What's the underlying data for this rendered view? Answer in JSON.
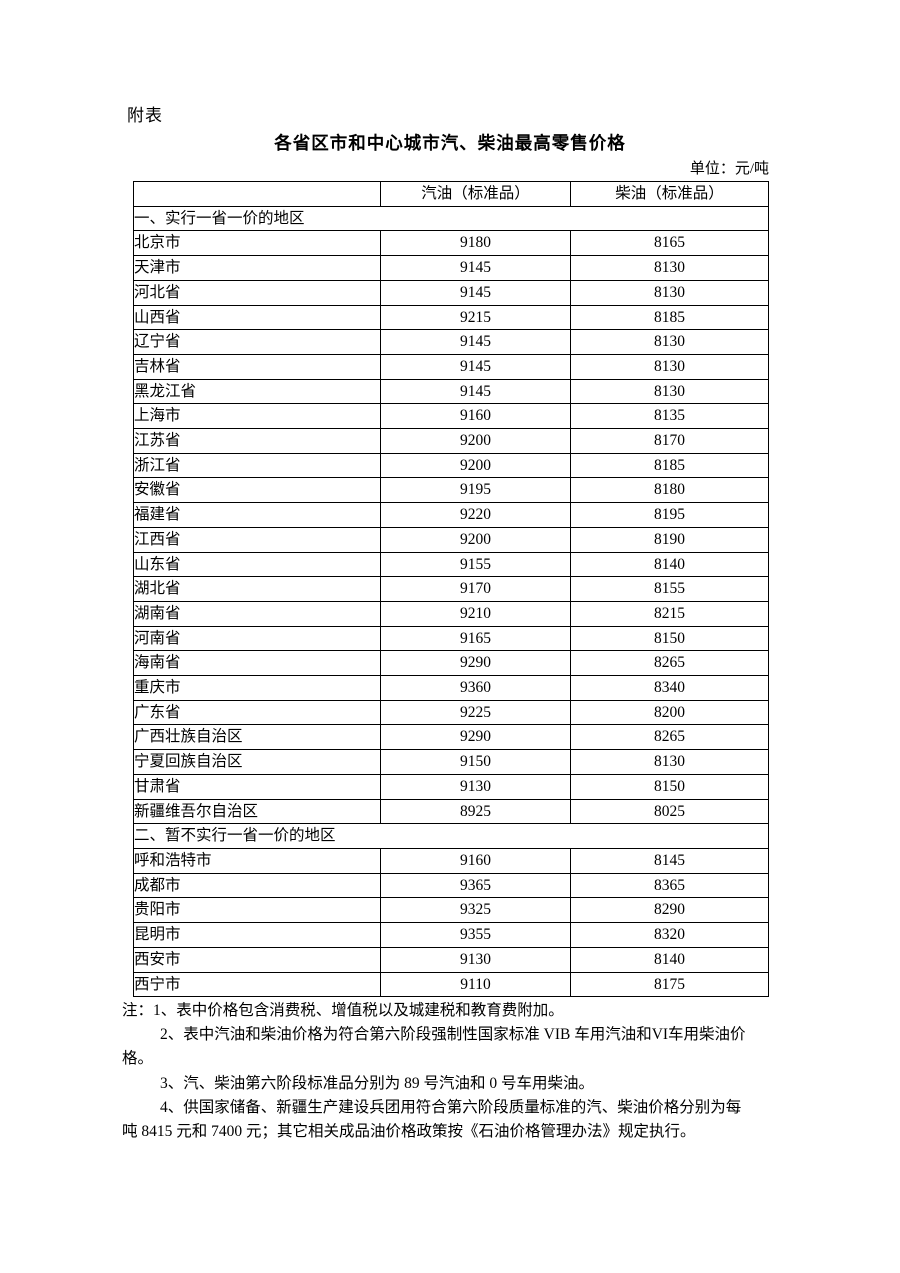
{
  "page": {
    "appendix_label": "附表",
    "title": "各省区市和中心城市汽、柴油最高零售价格",
    "unit_label": "单位：元/吨"
  },
  "table": {
    "columns": [
      "",
      "汽油（标准品）",
      "柴油（标准品）"
    ],
    "sections": [
      {
        "header": "一、实行一省一价的地区",
        "rows": [
          {
            "region": "北京市",
            "gasoline": "9180",
            "diesel": "8165"
          },
          {
            "region": "天津市",
            "gasoline": "9145",
            "diesel": "8130"
          },
          {
            "region": "河北省",
            "gasoline": "9145",
            "diesel": "8130"
          },
          {
            "region": "山西省",
            "gasoline": "9215",
            "diesel": "8185"
          },
          {
            "region": "辽宁省",
            "gasoline": "9145",
            "diesel": "8130"
          },
          {
            "region": "吉林省",
            "gasoline": "9145",
            "diesel": "8130"
          },
          {
            "region": "黑龙江省",
            "gasoline": "9145",
            "diesel": "8130"
          },
          {
            "region": "上海市",
            "gasoline": "9160",
            "diesel": "8135"
          },
          {
            "region": "江苏省",
            "gasoline": "9200",
            "diesel": "8170"
          },
          {
            "region": "浙江省",
            "gasoline": "9200",
            "diesel": "8185"
          },
          {
            "region": "安徽省",
            "gasoline": "9195",
            "diesel": "8180"
          },
          {
            "region": "福建省",
            "gasoline": "9220",
            "diesel": "8195"
          },
          {
            "region": "江西省",
            "gasoline": "9200",
            "diesel": "8190"
          },
          {
            "region": "山东省",
            "gasoline": "9155",
            "diesel": "8140"
          },
          {
            "region": "湖北省",
            "gasoline": "9170",
            "diesel": "8155"
          },
          {
            "region": "湖南省",
            "gasoline": "9210",
            "diesel": "8215"
          },
          {
            "region": "河南省",
            "gasoline": "9165",
            "diesel": "8150"
          },
          {
            "region": "海南省",
            "gasoline": "9290",
            "diesel": "8265"
          },
          {
            "region": "重庆市",
            "gasoline": "9360",
            "diesel": "8340"
          },
          {
            "region": "广东省",
            "gasoline": "9225",
            "diesel": "8200"
          },
          {
            "region": "广西壮族自治区",
            "gasoline": "9290",
            "diesel": "8265"
          },
          {
            "region": "宁夏回族自治区",
            "gasoline": "9150",
            "diesel": "8130"
          },
          {
            "region": "甘肃省",
            "gasoline": "9130",
            "diesel": "8150"
          },
          {
            "region": "新疆维吾尔自治区",
            "gasoline": "8925",
            "diesel": "8025"
          }
        ]
      },
      {
        "header": "二、暂不实行一省一价的地区",
        "rows": [
          {
            "region": "呼和浩特市",
            "gasoline": "9160",
            "diesel": "8145"
          },
          {
            "region": "成都市",
            "gasoline": "9365",
            "diesel": "8365"
          },
          {
            "region": "贵阳市",
            "gasoline": "9325",
            "diesel": "8290"
          },
          {
            "region": "昆明市",
            "gasoline": "9355",
            "diesel": "8320"
          },
          {
            "region": "西安市",
            "gasoline": "9130",
            "diesel": "8140"
          },
          {
            "region": "西宁市",
            "gasoline": "9110",
            "diesel": "8175"
          }
        ]
      }
    ]
  },
  "notes": {
    "lines": [
      {
        "text": "注：1、表中价格包含消费税、增值税以及城建税和教育费附加。",
        "indent": false
      },
      {
        "text": "2、表中汽油和柴油价格为符合第六阶段强制性国家标准 VIB 车用汽油和VI车用柴油价",
        "indent": true
      },
      {
        "text": "格。",
        "indent": false
      },
      {
        "text": "3、汽、柴油第六阶段标准品分别为 89 号汽油和 0 号车用柴油。",
        "indent": true
      },
      {
        "text": "4、供国家储备、新疆生产建设兵团用符合第六阶段质量标准的汽、柴油价格分别为每",
        "indent": true
      },
      {
        "text": "吨 8415 元和 7400 元；其它相关成品油价格政策按《石油价格管理办法》规定执行。",
        "indent": false
      }
    ]
  }
}
